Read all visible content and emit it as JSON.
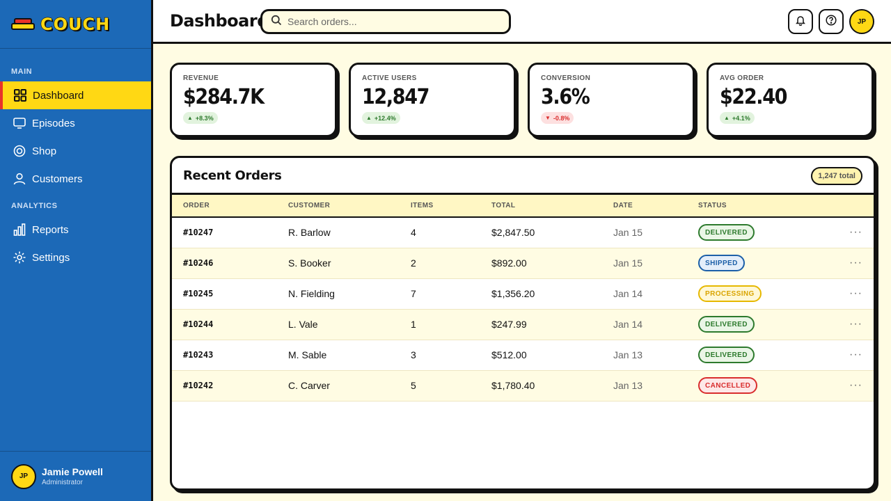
{
  "app": {
    "brand": "COUCH"
  },
  "sidebar": {
    "sections": [
      {
        "label": "MAIN"
      },
      {
        "label": "ANALYTICS"
      }
    ],
    "items": [
      {
        "label": "Dashboard",
        "icon": "grid-icon",
        "active": true
      },
      {
        "label": "Episodes",
        "icon": "tv-icon"
      },
      {
        "label": "Shop",
        "icon": "target-icon"
      },
      {
        "label": "Customers",
        "icon": "user-icon"
      },
      {
        "label": "Reports",
        "icon": "bar-chart-icon"
      },
      {
        "label": "Settings",
        "icon": "gear-icon"
      }
    ],
    "user": {
      "initials": "JP",
      "name": "Jamie Powell",
      "role": "Administrator"
    }
  },
  "header": {
    "title": "Dashboard",
    "search_placeholder": "Search orders...",
    "avatar_initials": "JP"
  },
  "stats": [
    {
      "label": "REVENUE",
      "value": "$284.7K",
      "delta": "+8.3%",
      "direction": "up"
    },
    {
      "label": "ACTIVE USERS",
      "value": "12,847",
      "delta": "+12.4%",
      "direction": "up"
    },
    {
      "label": "CONVERSION",
      "value": "3.6%",
      "delta": "-0.8%",
      "direction": "down"
    },
    {
      "label": "AVG ORDER",
      "value": "$22.40",
      "delta": "+4.1%",
      "direction": "up"
    }
  ],
  "orders": {
    "title": "Recent Orders",
    "total_badge": "1,247 total",
    "columns": [
      "ORDER",
      "CUSTOMER",
      "ITEMS",
      "TOTAL",
      "DATE",
      "STATUS"
    ],
    "rows": [
      {
        "order": "#10247",
        "customer": "R. Barlow",
        "items": "4",
        "total": "$2,847.50",
        "date": "Jan 15",
        "status": "DELIVERED"
      },
      {
        "order": "#10246",
        "customer": "S. Booker",
        "items": "2",
        "total": "$892.00",
        "date": "Jan 15",
        "status": "SHIPPED"
      },
      {
        "order": "#10245",
        "customer": "N. Fielding",
        "items": "7",
        "total": "$1,356.20",
        "date": "Jan 14",
        "status": "PROCESSING"
      },
      {
        "order": "#10244",
        "customer": "L. Vale",
        "items": "1",
        "total": "$247.99",
        "date": "Jan 14",
        "status": "DELIVERED"
      },
      {
        "order": "#10243",
        "customer": "M. Sable",
        "items": "3",
        "total": "$512.00",
        "date": "Jan 13",
        "status": "DELIVERED"
      },
      {
        "order": "#10242",
        "customer": "C. Carver",
        "items": "5",
        "total": "$1,780.40",
        "date": "Jan 13",
        "status": "CANCELLED"
      }
    ],
    "row_action": "···"
  },
  "colors": {
    "sidebar": "#1c69b7",
    "accent": "#ffd814",
    "active_marker": "#e8332a",
    "background": "#fffce3",
    "up": "#2d7a2d",
    "down": "#d92d2d"
  }
}
